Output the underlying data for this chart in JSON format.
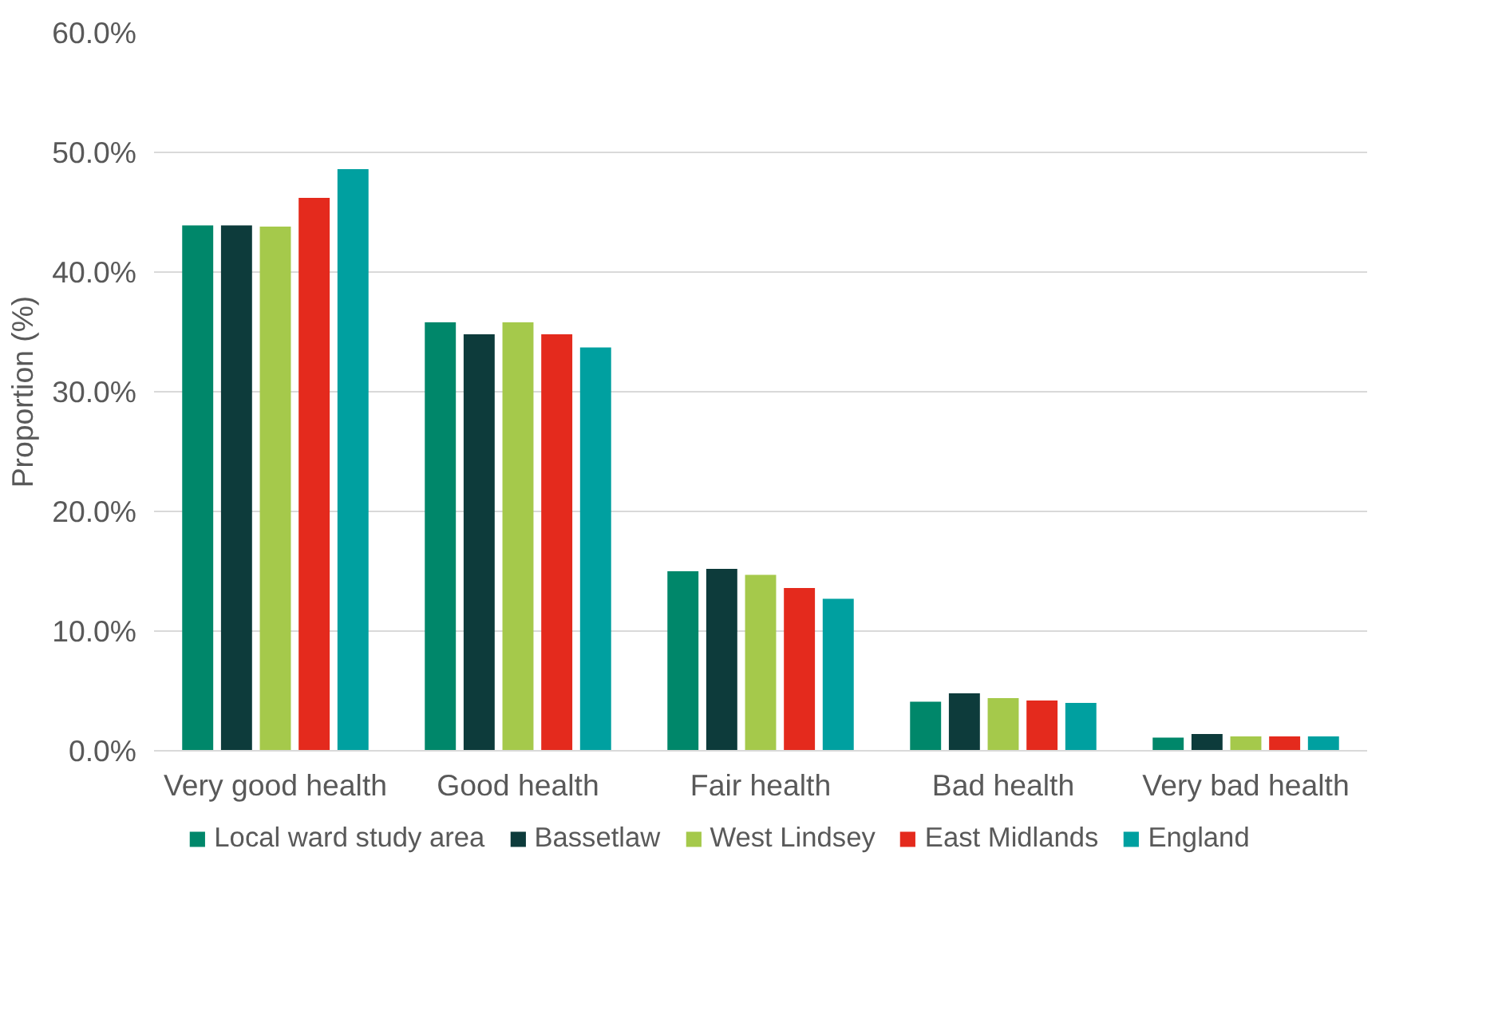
{
  "chart_data": {
    "type": "bar",
    "ylabel": "Proportion (%)",
    "categories": [
      "Very good health",
      "Good health",
      "Fair health",
      "Bad health",
      "Very bad health"
    ],
    "series": [
      {
        "name": "Local ward study area",
        "color": "#00876a",
        "values": [
          43.9,
          35.8,
          15.0,
          4.1,
          1.1
        ]
      },
      {
        "name": "Bassetlaw",
        "color": "#0d3b3b",
        "values": [
          43.9,
          34.8,
          15.2,
          4.8,
          1.4
        ]
      },
      {
        "name": "West Lindsey",
        "color": "#a5c94b",
        "values": [
          43.8,
          35.8,
          14.7,
          4.4,
          1.2
        ]
      },
      {
        "name": "East Midlands",
        "color": "#e42a1d",
        "values": [
          46.2,
          34.8,
          13.6,
          4.2,
          1.2
        ]
      },
      {
        "name": "England",
        "color": "#00a0a0",
        "values": [
          48.6,
          33.7,
          12.7,
          4.0,
          1.2
        ]
      }
    ],
    "ylim": [
      0,
      60
    ],
    "yticks": [
      {
        "value": 0,
        "label": "0.0%"
      },
      {
        "value": 10,
        "label": "10.0%"
      },
      {
        "value": 20,
        "label": "20.0%"
      },
      {
        "value": 30,
        "label": "30.0%"
      },
      {
        "value": 40,
        "label": "40.0%"
      },
      {
        "value": 50,
        "label": "50.0%"
      },
      {
        "value": 60,
        "label": "60.0%"
      }
    ],
    "grid": "y",
    "legend": "bottom"
  }
}
